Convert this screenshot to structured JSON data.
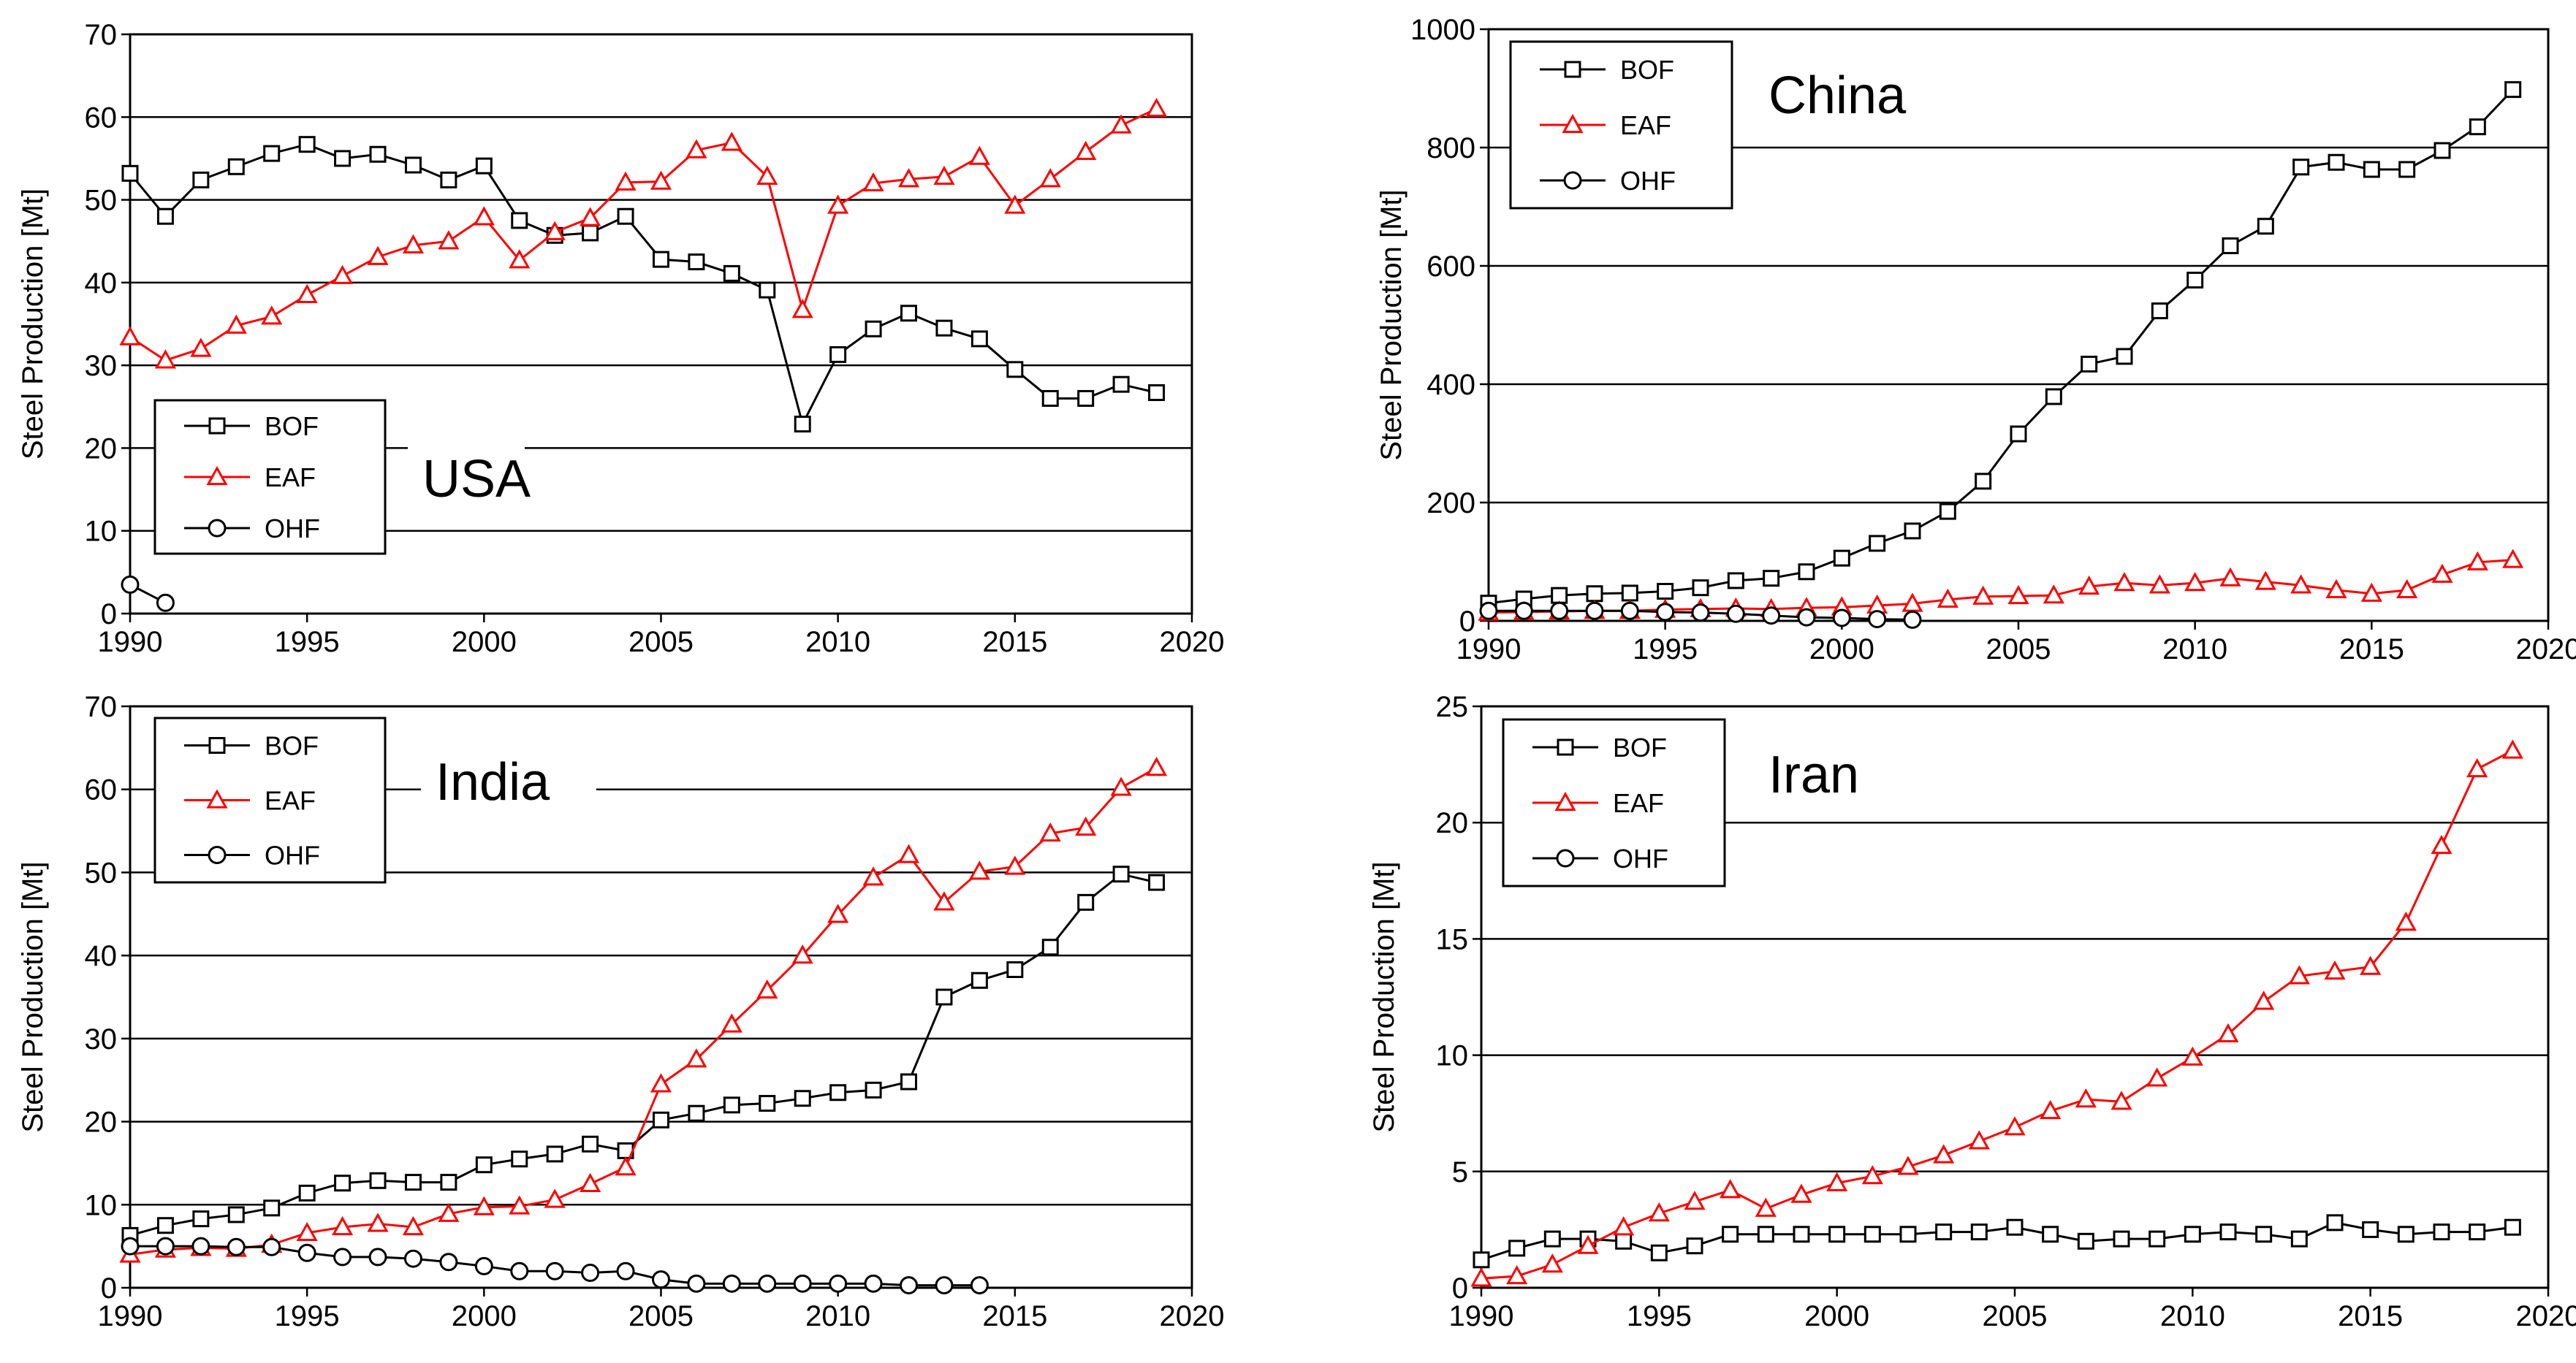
{
  "colors": {
    "bof": "#000000",
    "eaf": "#ff0000",
    "ohf": "#000000",
    "grid": "#000000"
  },
  "chart_data": [
    {
      "type": "line",
      "title": "USA",
      "xlabel": "",
      "ylabel": "Steel Production [Mt]",
      "xlim": [
        1990,
        2020
      ],
      "ylim": [
        0,
        70
      ],
      "xticks": [
        "1990",
        "1995",
        "2000",
        "2005",
        "2010",
        "2015",
        "2020"
      ],
      "yticks": [
        "0",
        "10",
        "20",
        "30",
        "40",
        "50",
        "60",
        "70"
      ],
      "legend": [
        "BOF",
        "EAF",
        "OHF"
      ],
      "series": [
        {
          "name": "BOF",
          "x": [
            1990,
            1991,
            1992,
            1993,
            1994,
            1995,
            1996,
            1997,
            1998,
            1999,
            2000,
            2001,
            2002,
            2003,
            2004,
            2005,
            2006,
            2007,
            2008,
            2009,
            2010,
            2011,
            2012,
            2013,
            2014,
            2015,
            2016,
            2017,
            2018,
            2019
          ],
          "values": [
            53.2,
            48.0,
            52.4,
            54.0,
            55.6,
            56.7,
            55.0,
            55.5,
            54.2,
            52.4,
            54.1,
            47.5,
            45.7,
            46.0,
            48.0,
            42.8,
            42.5,
            41.1,
            39.1,
            22.9,
            31.3,
            34.4,
            36.3,
            34.5,
            33.2,
            29.5,
            26.0,
            26.0,
            27.7,
            26.7
          ]
        },
        {
          "name": "EAF",
          "x": [
            1990,
            1991,
            1992,
            1993,
            1994,
            1995,
            1996,
            1997,
            1998,
            1999,
            2000,
            2001,
            2002,
            2003,
            2004,
            2005,
            2006,
            2007,
            2008,
            2009,
            2010,
            2011,
            2012,
            2013,
            2014,
            2015,
            2016,
            2017,
            2018,
            2019
          ],
          "values": [
            33.4,
            30.6,
            32.0,
            34.8,
            35.9,
            38.5,
            40.8,
            43.1,
            44.5,
            45.0,
            47.9,
            42.7,
            46.1,
            47.8,
            52.1,
            52.2,
            56.0,
            56.9,
            52.8,
            36.7,
            49.3,
            52.0,
            52.5,
            52.8,
            55.2,
            49.3,
            52.5,
            55.8,
            59.0,
            61.0
          ]
        },
        {
          "name": "OHF",
          "x": [
            1990,
            1991
          ],
          "values": [
            3.5,
            1.3
          ]
        }
      ]
    },
    {
      "type": "line",
      "title": "China",
      "xlabel": "",
      "ylabel": "Steel Production [Mt]",
      "xlim": [
        1990,
        2020
      ],
      "ylim": [
        0,
        1000
      ],
      "xticks": [
        "1990",
        "1995",
        "2000",
        "2005",
        "2010",
        "2015",
        "2020"
      ],
      "yticks": [
        "0",
        "200",
        "400",
        "600",
        "800",
        "1000"
      ],
      "legend": [
        "BOF",
        "EAF",
        "OHF"
      ],
      "series": [
        {
          "name": "BOF",
          "x": [
            1990,
            1991,
            1992,
            1993,
            1994,
            1995,
            1996,
            1997,
            1998,
            1999,
            2000,
            2001,
            2002,
            2003,
            2004,
            2005,
            2006,
            2007,
            2008,
            2009,
            2010,
            2011,
            2012,
            2013,
            2014,
            2015,
            2016,
            2017,
            2018,
            2019
          ],
          "values": [
            30,
            37,
            43,
            46,
            47,
            50,
            56,
            68,
            72,
            83,
            106,
            131,
            152,
            185,
            236,
            316,
            379,
            434,
            447,
            524,
            576,
            634,
            667,
            767,
            775,
            763,
            763,
            795,
            835,
            898
          ]
        },
        {
          "name": "EAF",
          "x": [
            1990,
            1991,
            1992,
            1993,
            1994,
            1995,
            1996,
            1997,
            1998,
            1999,
            2000,
            2001,
            2002,
            2003,
            2004,
            2005,
            2006,
            2007,
            2008,
            2009,
            2010,
            2011,
            2012,
            2013,
            2014,
            2015,
            2016,
            2017,
            2018,
            2019
          ],
          "values": [
            14,
            15,
            16,
            17,
            17,
            19,
            20,
            21,
            20,
            22,
            23,
            26,
            29,
            36,
            41,
            42,
            43,
            58,
            64,
            60,
            64,
            72,
            66,
            60,
            52,
            46,
            52,
            78,
            99,
            103
          ]
        },
        {
          "name": "OHF",
          "x": [
            1990,
            1991,
            1992,
            1993,
            1994,
            1995,
            1996,
            1997,
            1998,
            1999,
            2000,
            2001,
            2002
          ],
          "values": [
            17,
            17,
            17,
            17,
            17,
            15,
            14,
            12,
            9,
            6,
            5,
            3,
            2
          ]
        }
      ]
    },
    {
      "type": "line",
      "title": "India",
      "xlabel": "",
      "ylabel": "Steel Production [Mt]",
      "xlim": [
        1990,
        2020
      ],
      "ylim": [
        0,
        70
      ],
      "xticks": [
        "1990",
        "1995",
        "2000",
        "2005",
        "2010",
        "2015",
        "2020"
      ],
      "yticks": [
        "0",
        "10",
        "20",
        "30",
        "40",
        "50",
        "60",
        "70"
      ],
      "legend": [
        "BOF",
        "EAF",
        "OHF"
      ],
      "series": [
        {
          "name": "BOF",
          "x": [
            1990,
            1991,
            1992,
            1993,
            1994,
            1995,
            1996,
            1997,
            1998,
            1999,
            2000,
            2001,
            2002,
            2003,
            2004,
            2005,
            2006,
            2007,
            2008,
            2009,
            2010,
            2011,
            2012,
            2013,
            2014,
            2015,
            2016,
            2017,
            2018,
            2019
          ],
          "values": [
            6.3,
            7.5,
            8.3,
            8.8,
            9.6,
            11.4,
            12.6,
            12.9,
            12.7,
            12.7,
            14.8,
            15.5,
            16.1,
            17.3,
            16.5,
            20.2,
            21.0,
            22.0,
            22.2,
            22.8,
            23.5,
            23.8,
            24.8,
            35.0,
            37.0,
            38.3,
            41.0,
            46.4,
            49.8,
            48.8
          ]
        },
        {
          "name": "EAF",
          "x": [
            1990,
            1991,
            1992,
            1993,
            1994,
            1995,
            1996,
            1997,
            1998,
            1999,
            2000,
            2001,
            2002,
            2003,
            2004,
            2005,
            2006,
            2007,
            2008,
            2009,
            2010,
            2011,
            2012,
            2013,
            2014,
            2015,
            2016,
            2017,
            2018,
            2019
          ],
          "values": [
            4.0,
            4.6,
            4.8,
            4.7,
            5.2,
            6.6,
            7.3,
            7.7,
            7.3,
            8.9,
            9.7,
            9.8,
            10.6,
            12.5,
            14.5,
            24.5,
            27.5,
            31.7,
            35.8,
            40.0,
            44.9,
            49.4,
            52.1,
            46.4,
            50.1,
            50.7,
            54.7,
            55.4,
            60.2,
            62.6
          ]
        },
        {
          "name": "OHF",
          "x": [
            1990,
            1991,
            1992,
            1993,
            1994,
            1995,
            1996,
            1997,
            1998,
            1999,
            2000,
            2001,
            2002,
            2003,
            2004,
            2005,
            2006,
            2007,
            2008,
            2009,
            2010,
            2011,
            2012,
            2013,
            2014
          ],
          "values": [
            5.0,
            5.0,
            5.0,
            4.9,
            4.9,
            4.2,
            3.7,
            3.7,
            3.5,
            3.1,
            2.6,
            2.0,
            2.0,
            1.8,
            2.0,
            1.0,
            0.5,
            0.5,
            0.5,
            0.5,
            0.5,
            0.5,
            0.3,
            0.3,
            0.3
          ]
        }
      ]
    },
    {
      "type": "line",
      "title": "Iran",
      "xlabel": "",
      "ylabel": "Steel Production [Mt]",
      "xlim": [
        1990,
        2020
      ],
      "ylim": [
        0,
        25
      ],
      "xticks": [
        "1990",
        "1995",
        "2000",
        "2005",
        "2010",
        "2015",
        "2020"
      ],
      "yticks": [
        "0",
        "5",
        "10",
        "15",
        "20",
        "25"
      ],
      "legend": [
        "BOF",
        "EAF",
        "OHF"
      ],
      "series": [
        {
          "name": "BOF",
          "x": [
            1990,
            1991,
            1992,
            1993,
            1994,
            1995,
            1996,
            1997,
            1998,
            1999,
            2000,
            2001,
            2002,
            2003,
            2004,
            2005,
            2006,
            2007,
            2008,
            2009,
            2010,
            2011,
            2012,
            2013,
            2014,
            2015,
            2016,
            2017,
            2018,
            2019
          ],
          "values": [
            1.2,
            1.7,
            2.1,
            2.1,
            2.0,
            1.5,
            1.8,
            2.3,
            2.3,
            2.3,
            2.3,
            2.3,
            2.3,
            2.4,
            2.4,
            2.6,
            2.3,
            2.0,
            2.1,
            2.1,
            2.3,
            2.4,
            2.3,
            2.1,
            2.8,
            2.5,
            2.3,
            2.4,
            2.4,
            2.6
          ]
        },
        {
          "name": "EAF",
          "x": [
            1990,
            1991,
            1992,
            1993,
            1994,
            1995,
            1996,
            1997,
            1998,
            1999,
            2000,
            2001,
            2002,
            2003,
            2004,
            2005,
            2006,
            2007,
            2008,
            2009,
            2010,
            2011,
            2012,
            2013,
            2014,
            2015,
            2016,
            2017,
            2018,
            2019
          ],
          "values": [
            0.4,
            0.5,
            1.0,
            1.8,
            2.6,
            3.2,
            3.7,
            4.2,
            3.4,
            4.0,
            4.5,
            4.8,
            5.2,
            5.7,
            6.3,
            6.9,
            7.6,
            8.1,
            8.0,
            9.0,
            9.9,
            10.9,
            12.3,
            13.4,
            13.6,
            13.8,
            15.7,
            19.0,
            22.3,
            23.1
          ]
        },
        {
          "name": "OHF",
          "x": [],
          "values": []
        }
      ]
    }
  ]
}
